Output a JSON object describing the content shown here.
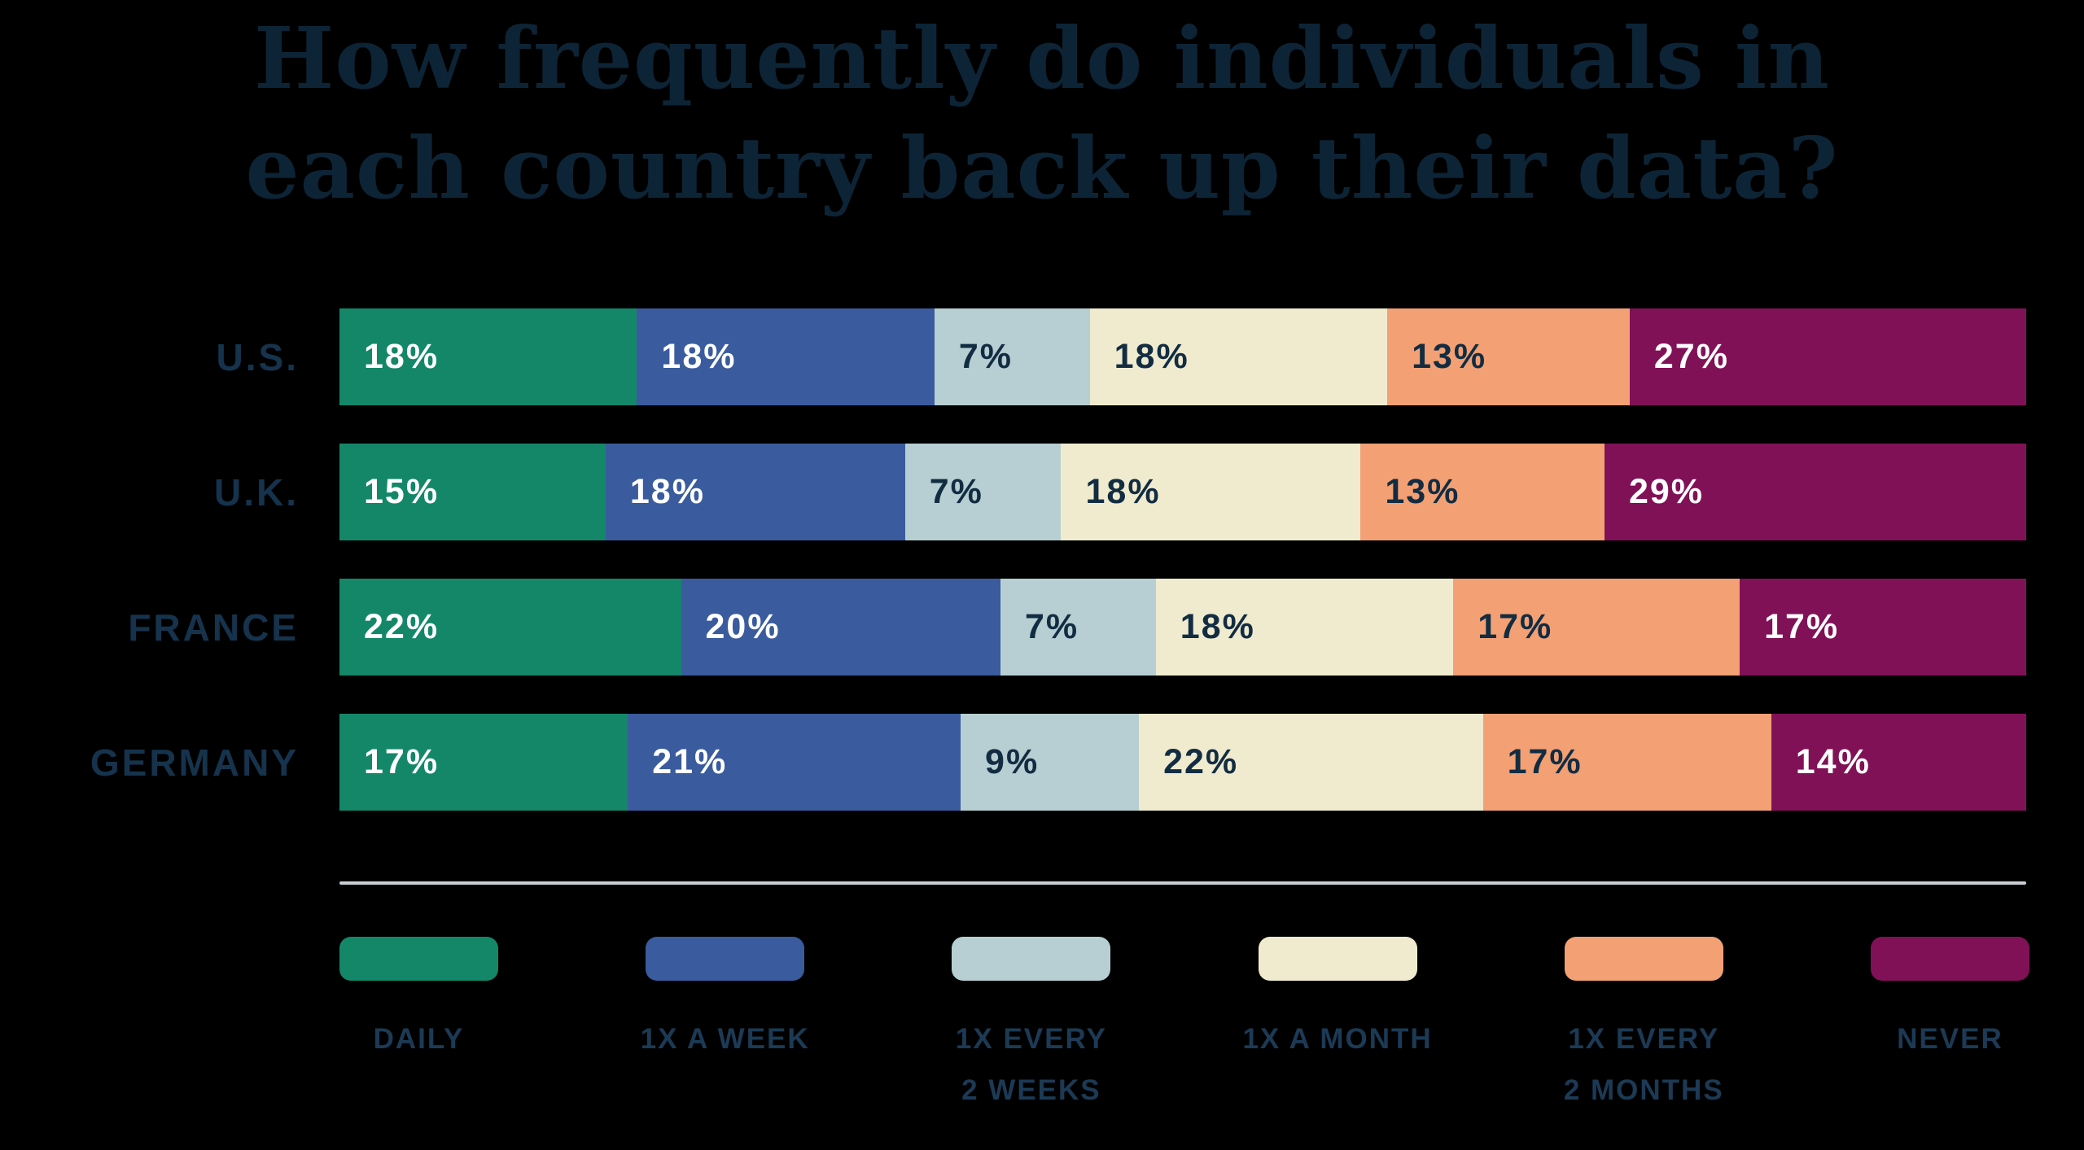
{
  "title": {
    "line1": "How frequently do individuals in",
    "line2": "each country back up their data?"
  },
  "colors": {
    "background": "#000000",
    "title_text": "#0d2436",
    "country_label_text": "#16334d",
    "value_text_light": "#ffffff",
    "value_text_dark": "#122c42",
    "legend_label_text": "#1c3a55",
    "separator": "#c8ccd3"
  },
  "chart_data": {
    "type": "bar",
    "stacked": true,
    "orientation": "horizontal",
    "title": "How frequently do individuals in each country back up their data?",
    "value_suffix": "%",
    "axis_range": [
      0,
      100
    ],
    "grid": false,
    "legend_position": "bottom",
    "categories": [
      "U.S.",
      "U.K.",
      "FRANCE",
      "GERMANY"
    ],
    "series": [
      {
        "name": "DAILY",
        "color": "#148769",
        "text_color": "#ffffff",
        "values": [
          18,
          15,
          22,
          17
        ]
      },
      {
        "name": "1X A WEEK",
        "color": "#3a5b9d",
        "text_color": "#ffffff",
        "values": [
          18,
          18,
          20,
          21
        ]
      },
      {
        "name": "1X EVERY 2 WEEKS",
        "color": "#b7cfd2",
        "text_color": "#122c42",
        "values": [
          7,
          7,
          7,
          9
        ]
      },
      {
        "name": "1X A MONTH",
        "color": "#f0ebcf",
        "text_color": "#122c42",
        "values": [
          18,
          18,
          18,
          22
        ]
      },
      {
        "name": "1X EVERY 2 MONTHS",
        "color": "#f2a074",
        "text_color": "#122c42",
        "values": [
          13,
          13,
          17,
          17
        ]
      },
      {
        "name": "NEVER",
        "color": "#811157",
        "text_color": "#ffffff",
        "values": [
          27,
          29,
          17,
          14
        ]
      }
    ],
    "legend": [
      {
        "lines": [
          "DAILY"
        ]
      },
      {
        "lines": [
          "1X A WEEK"
        ]
      },
      {
        "lines": [
          "1X EVERY",
          "2 WEEKS"
        ]
      },
      {
        "lines": [
          "1X A MONTH"
        ]
      },
      {
        "lines": [
          "1X EVERY",
          "2 MONTHS"
        ]
      },
      {
        "lines": [
          "NEVER"
        ]
      }
    ]
  }
}
